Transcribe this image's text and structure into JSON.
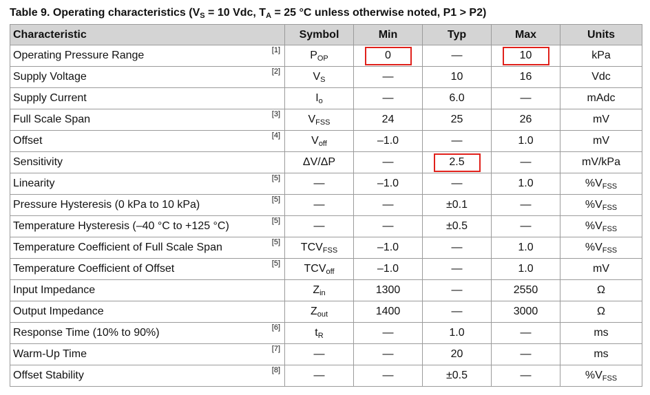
{
  "caption": {
    "pre": "Table 9.  Operating characteristics (V",
    "vs_sub": "S",
    "mid": " = 10 Vdc, T",
    "ta_sub": "A",
    "post": " = 25 °C unless otherwise noted, P1 > P2)"
  },
  "headers": [
    "Characteristic",
    "Symbol",
    "Min",
    "Typ",
    "Max",
    "Units"
  ],
  "rows": [
    {
      "char": "Operating Pressure Range",
      "note": "[1]",
      "sym": "P",
      "sym_sub": "OP",
      "min": "0",
      "typ": "—",
      "max": "10",
      "unit": "kPa",
      "unit_sub": ""
    },
    {
      "char": "Supply Voltage",
      "note": "[2]",
      "sym": "V",
      "sym_sub": "S",
      "min": "—",
      "typ": "10",
      "max": "16",
      "unit": "Vdc",
      "unit_sub": ""
    },
    {
      "char": "Supply Current",
      "note": "",
      "sym": "I",
      "sym_sub": "o",
      "min": "—",
      "typ": "6.0",
      "max": "—",
      "unit": "mAdc",
      "unit_sub": ""
    },
    {
      "char": "Full Scale Span",
      "note": "[3]",
      "sym": "V",
      "sym_sub": "FSS",
      "min": "24",
      "typ": "25",
      "max": "26",
      "unit": "mV",
      "unit_sub": ""
    },
    {
      "char": "Offset",
      "note": "[4]",
      "sym": "V",
      "sym_sub": "off",
      "min": "–1.0",
      "typ": "—",
      "max": "1.0",
      "unit": "mV",
      "unit_sub": ""
    },
    {
      "char": "Sensitivity",
      "note": "",
      "sym": "ΔV/ΔP",
      "sym_sub": "",
      "min": "—",
      "typ": "2.5",
      "max": "—",
      "unit": "mV/kPa",
      "unit_sub": ""
    },
    {
      "char": "Linearity",
      "note": "[5]",
      "sym": "—",
      "sym_sub": "",
      "min": "–1.0",
      "typ": "—",
      "max": "1.0",
      "unit": "%V",
      "unit_sub": "FSS"
    },
    {
      "char": "Pressure Hysteresis (0 kPa to 10 kPa)",
      "note": "[5]",
      "sym": "—",
      "sym_sub": "",
      "min": "—",
      "typ": "±0.1",
      "max": "—",
      "unit": "%V",
      "unit_sub": "FSS"
    },
    {
      "char": "Temperature Hysteresis (–40 °C to +125 °C)",
      "note": "[5]",
      "sym": "—",
      "sym_sub": "",
      "min": "—",
      "typ": "±0.5",
      "max": "—",
      "unit": "%V",
      "unit_sub": "FSS"
    },
    {
      "char": "Temperature Coefficient of Full Scale Span",
      "note": "[5]",
      "sym": "TCV",
      "sym_sub": "FSS",
      "min": "–1.0",
      "typ": "—",
      "max": "1.0",
      "unit": "%V",
      "unit_sub": "FSS"
    },
    {
      "char": "Temperature Coefficient of Offset",
      "note": "[5]",
      "sym": "TCV",
      "sym_sub": "off",
      "min": "–1.0",
      "typ": "—",
      "max": "1.0",
      "unit": "mV",
      "unit_sub": ""
    },
    {
      "char": "Input Impedance",
      "note": "",
      "sym": "Z",
      "sym_sub": "in",
      "min": "1300",
      "typ": "—",
      "max": "2550",
      "unit": "Ω",
      "unit_sub": ""
    },
    {
      "char": "Output Impedance",
      "note": "",
      "sym": "Z",
      "sym_sub": "out",
      "min": "1400",
      "typ": "—",
      "max": "3000",
      "unit": "Ω",
      "unit_sub": ""
    },
    {
      "char": "Response Time (10% to 90%)",
      "note": "[6]",
      "sym": "t",
      "sym_sub": "R",
      "min": "—",
      "typ": "1.0",
      "max": "—",
      "unit": "ms",
      "unit_sub": ""
    },
    {
      "char": "Warm-Up Time",
      "note": "[7]",
      "sym": "—",
      "sym_sub": "",
      "min": "—",
      "typ": "20",
      "max": "—",
      "unit": "ms",
      "unit_sub": ""
    },
    {
      "char": "Offset Stability",
      "note": "[8]",
      "sym": "—",
      "sym_sub": "",
      "min": "—",
      "typ": "±0.5",
      "max": "—",
      "unit": "%V",
      "unit_sub": "FSS"
    }
  ],
  "highlight_color": "#e0201a"
}
